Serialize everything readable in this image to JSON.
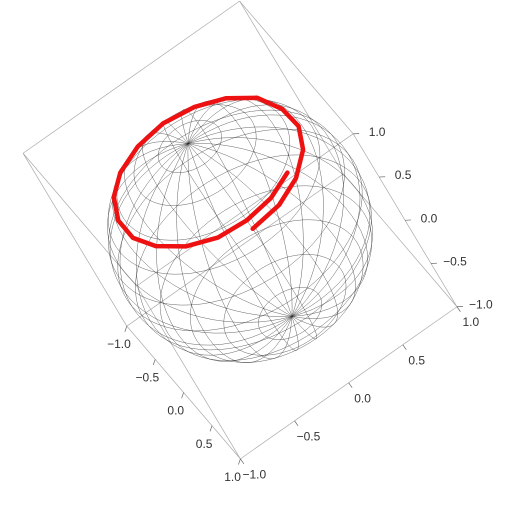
{
  "chart_data": {
    "type": "line3d",
    "xlim": [
      -1,
      1
    ],
    "ylim": [
      -1,
      1
    ],
    "zlim": [
      -1,
      1
    ],
    "xticks": [
      {
        "value": -1,
        "label": "−1.0"
      },
      {
        "value": -0.5,
        "label": "−0.5"
      },
      {
        "value": 0,
        "label": "0.0"
      },
      {
        "value": 0.5,
        "label": "0.5"
      },
      {
        "value": 1,
        "label": "1.0"
      }
    ],
    "yticks": [
      {
        "value": -1,
        "label": "−1.0"
      },
      {
        "value": -0.5,
        "label": "−0.5"
      },
      {
        "value": 0,
        "label": "0.0"
      },
      {
        "value": 0.5,
        "label": "0.5"
      },
      {
        "value": 1,
        "label": "1.0"
      }
    ],
    "zticks": [
      {
        "value": -1,
        "label": "−1.0"
      },
      {
        "value": -0.5,
        "label": "−0.5"
      },
      {
        "value": 0,
        "label": "0.0"
      },
      {
        "value": 0.5,
        "label": "0.5"
      },
      {
        "value": 1,
        "label": "1.0"
      }
    ],
    "curve": {
      "color": "#ee1111",
      "x": [
        0.79,
        0.74,
        0.6,
        0.39,
        0.14,
        -0.13,
        -0.39,
        -0.59,
        -0.72,
        -0.76,
        -0.71,
        -0.58,
        -0.38,
        -0.13,
        0.13,
        0.37,
        0.57,
        0.7,
        0.74,
        0.69,
        0.56
      ],
      "y": [
        0.0,
        0.27,
        0.5,
        0.68,
        0.77,
        0.76,
        0.67,
        0.49,
        0.26,
        0.0,
        -0.26,
        -0.49,
        -0.65,
        -0.74,
        -0.74,
        -0.65,
        -0.48,
        -0.25,
        0.0,
        0.25,
        0.47
      ],
      "z": [
        0.62,
        0.62,
        0.62,
        0.63,
        0.63,
        0.63,
        0.64,
        0.64,
        0.64,
        0.65,
        0.65,
        0.65,
        0.66,
        0.66,
        0.66,
        0.67,
        0.67,
        0.67,
        0.68,
        0.68,
        0.68
      ]
    }
  }
}
